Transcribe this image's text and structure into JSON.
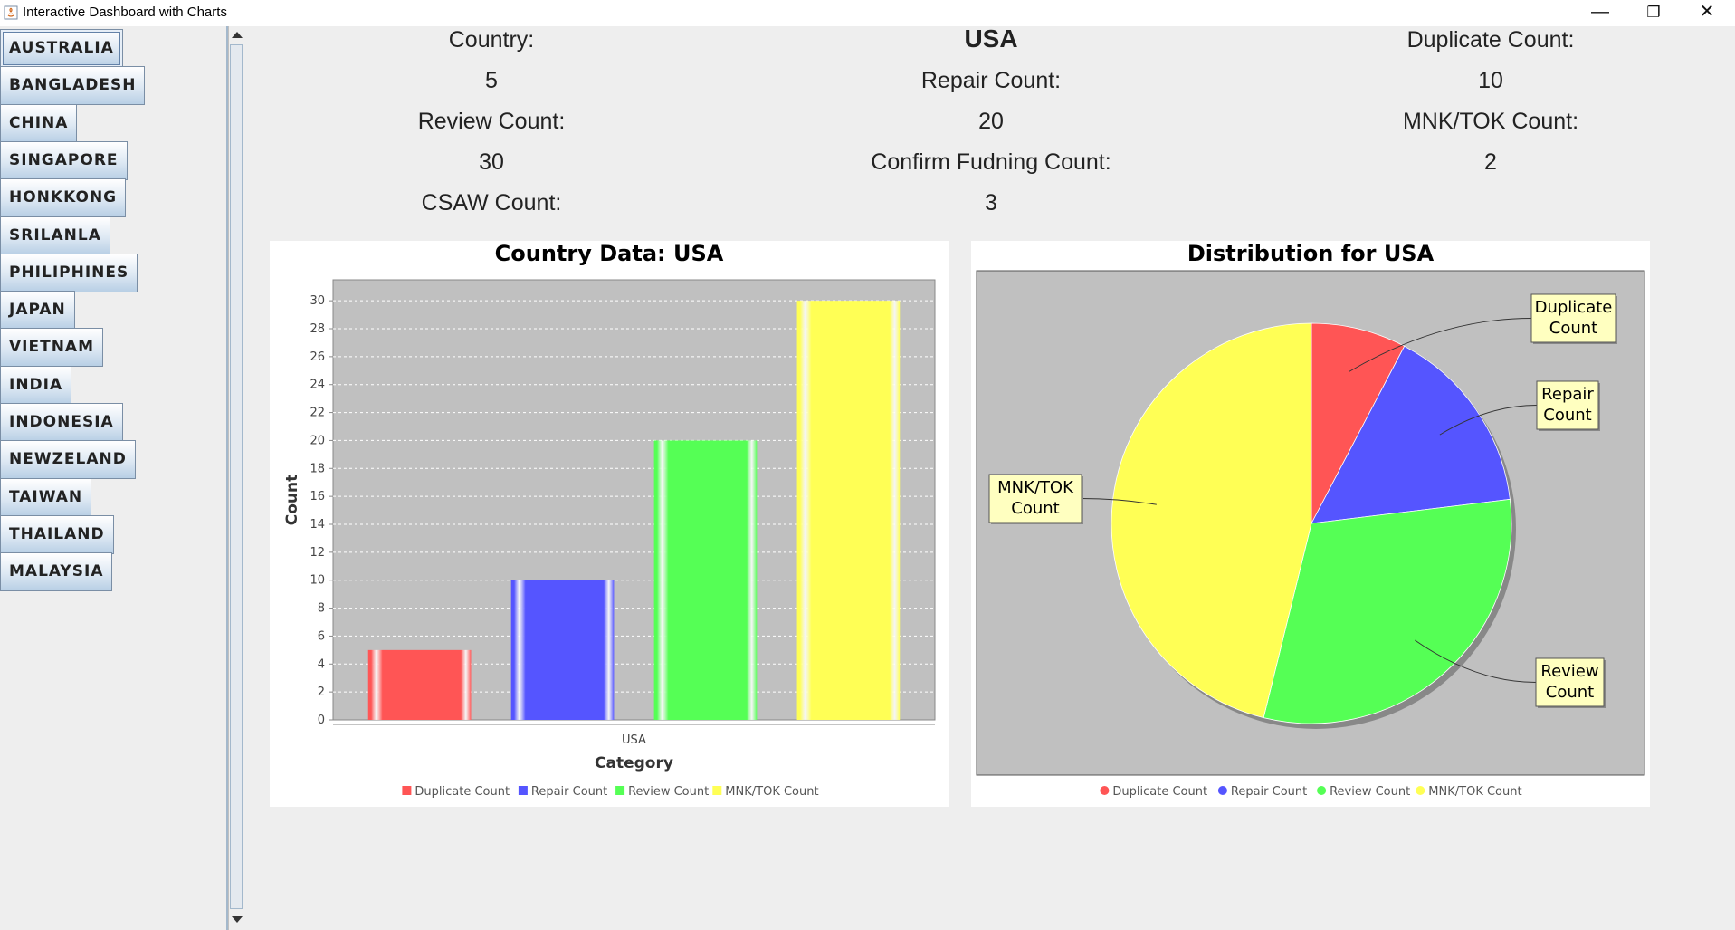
{
  "window": {
    "title": "Interactive Dashboard with Charts",
    "minimize_glyph": "—",
    "restore_glyph": "❐",
    "close_glyph": "✕"
  },
  "sidebar": {
    "selected": "AUSTRALIA",
    "countries": [
      "AUSTRALIA",
      "BANGLADESH",
      "CHINA",
      "SINGAPORE",
      "HONKKONG",
      "SRILANLA",
      "PHILIPHINES",
      "JAPAN",
      "VIETNAM",
      "INDIA",
      "INDONESIA",
      "NEWZELAND",
      "TAIWAN",
      "THAILAND",
      "MALAYSIA"
    ]
  },
  "info": {
    "country_label": "Country:",
    "country_value": "USA",
    "duplicate_label": "Duplicate Count:",
    "duplicate_value": "5",
    "repair_label": "Repair Count:",
    "repair_value": "10",
    "review_label": "Review Count:",
    "review_value": "20",
    "mnktok_label": "MNK/TOK Count:",
    "mnktok_value": "30",
    "confirm_label": "Confirm Fudning Count:",
    "confirm_value": "2",
    "csaw_label": "CSAW Count:",
    "csaw_value": "3"
  },
  "chart_data": [
    {
      "type": "bar",
      "title": "Country Data: USA",
      "xlabel": "Category",
      "ylabel": "Count",
      "categories": [
        "USA"
      ],
      "series": [
        {
          "name": "Duplicate Count",
          "values": [
            5
          ],
          "color": "#ff5555"
        },
        {
          "name": "Repair Count",
          "values": [
            10
          ],
          "color": "#5555ff"
        },
        {
          "name": "Review Count",
          "values": [
            20
          ],
          "color": "#55ff55"
        },
        {
          "name": "MNK/TOK Count",
          "values": [
            30
          ],
          "color": "#ffff55"
        }
      ],
      "ylim": [
        0,
        31.5
      ],
      "yticks": [
        0,
        2,
        4,
        6,
        8,
        10,
        12,
        14,
        16,
        18,
        20,
        22,
        24,
        26,
        28,
        30
      ],
      "grid": true,
      "legend": "bottom"
    },
    {
      "type": "pie",
      "title": "Distribution for USA",
      "labels": [
        "Duplicate Count",
        "Repair Count",
        "Review Count",
        "MNK/TOK Count"
      ],
      "label_lines": [
        [
          "Duplicate",
          "Count"
        ],
        [
          "Repair",
          "Count"
        ],
        [
          "Review",
          "Count"
        ],
        [
          "MNK/TOK",
          "Count"
        ]
      ],
      "values": [
        5,
        10,
        20,
        30
      ],
      "colors": [
        "#ff5555",
        "#5555ff",
        "#55ff55",
        "#ffff55"
      ],
      "legend": "bottom"
    }
  ]
}
